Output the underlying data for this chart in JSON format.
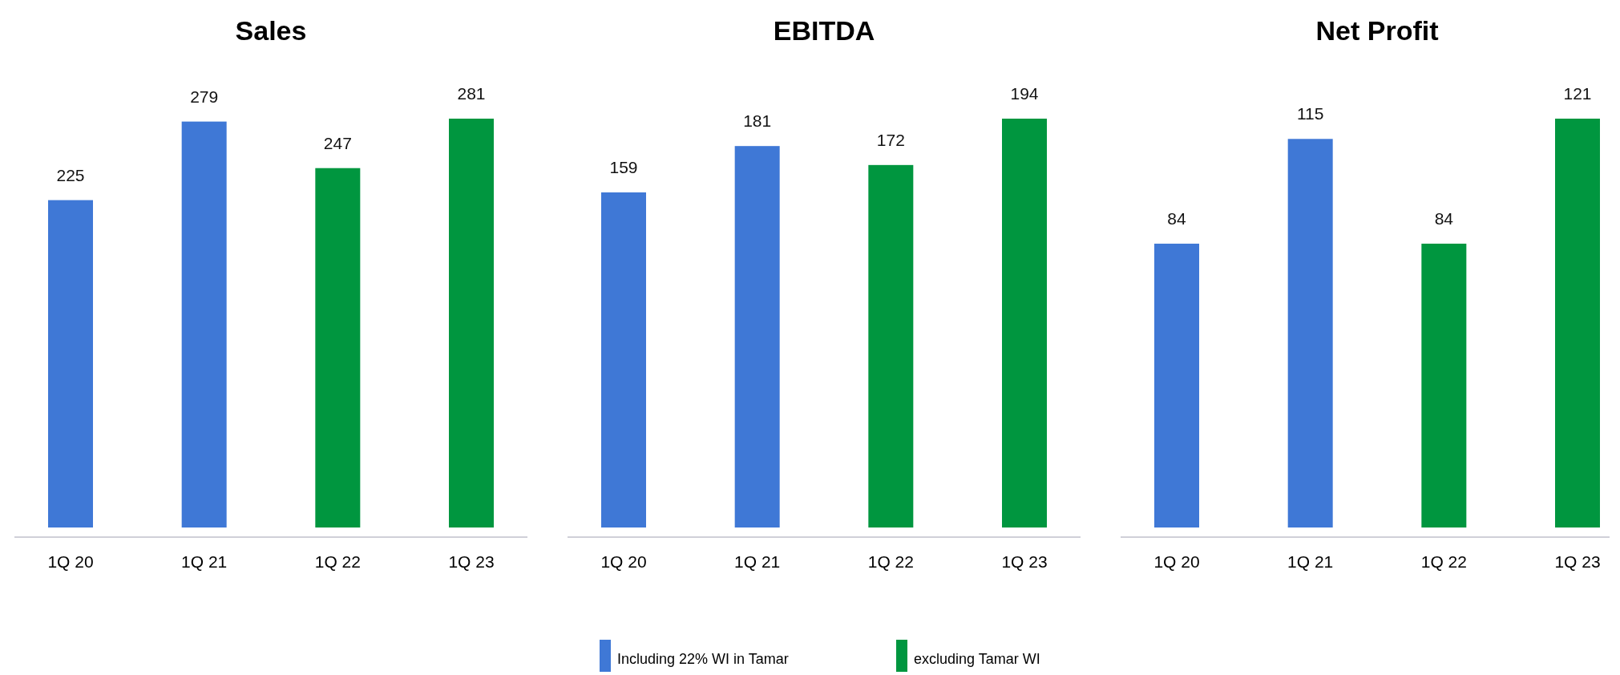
{
  "chart_data": [
    {
      "type": "bar",
      "title": "Sales",
      "categories": [
        "1Q 20",
        "1Q 21",
        "1Q 22",
        "1Q 23"
      ],
      "series": [
        {
          "color": "#3f78d6",
          "values": [
            225,
            279,
            null,
            null
          ]
        },
        {
          "color": "#00963f",
          "values": [
            null,
            null,
            247,
            281
          ]
        }
      ],
      "data_labels": true,
      "legend": false
    },
    {
      "type": "bar",
      "title": "EBITDA",
      "categories": [
        "1Q 20",
        "1Q 21",
        "1Q 22",
        "1Q 23"
      ],
      "series": [
        {
          "name": "Including 22% WI in Tamar",
          "color": "#3f78d6",
          "values": [
            159,
            181,
            null,
            null
          ]
        },
        {
          "name": "excluding Tamar WI",
          "color": "#00963f",
          "values": [
            null,
            null,
            172,
            194
          ]
        }
      ],
      "data_labels": true,
      "legend": "bottom"
    },
    {
      "type": "bar",
      "title": "Net Profit",
      "categories": [
        "1Q 20",
        "1Q 21",
        "1Q 22",
        "1Q 23"
      ],
      "series": [
        {
          "color": "#3f78d6",
          "values": [
            84,
            115,
            null,
            null
          ]
        },
        {
          "color": "#00963f",
          "values": [
            null,
            null,
            84,
            121
          ]
        }
      ],
      "data_labels": true,
      "legend": false
    }
  ]
}
